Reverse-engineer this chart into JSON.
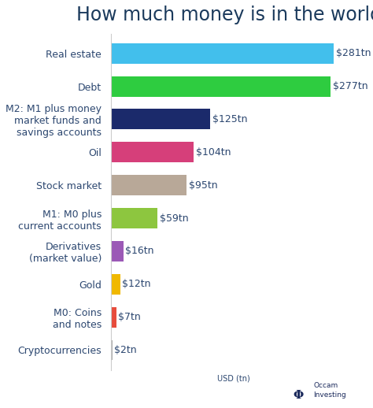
{
  "title": "How much money is in the world?",
  "categories": [
    "Cryptocurrencies",
    "M0: Coins\nand notes",
    "Gold",
    "Derivatives\n(market value)",
    "M1: M0 plus\ncurrent accounts",
    "Stock market",
    "Oil",
    "M2: M1 plus money\nmarket funds and\nsavings accounts",
    "Debt",
    "Real estate"
  ],
  "values": [
    2,
    7,
    12,
    16,
    59,
    95,
    104,
    125,
    277,
    281
  ],
  "labels": [
    "$2tn",
    "$7tn",
    "$12tn",
    "$16tn",
    "$59tn",
    "$95tn",
    "$104tn",
    "$125tn",
    "$277tn",
    "$281tn"
  ],
  "colors": [
    "#AAAAAA",
    "#E74C3C",
    "#F0B800",
    "#9B59B6",
    "#8DC63F",
    "#B8A898",
    "#D63F7A",
    "#1B2A6B",
    "#2ECC40",
    "#42BFEC"
  ],
  "xlabel": "USD (tn)",
  "xlim": [
    0,
    310
  ],
  "background_color": "#FFFFFF",
  "title_color": "#1B3A5C",
  "label_color": "#2C4770",
  "title_fontsize": 17,
  "label_fontsize": 9,
  "value_fontsize": 9,
  "xlabel_fontsize": 7,
  "bar_height": 0.62
}
